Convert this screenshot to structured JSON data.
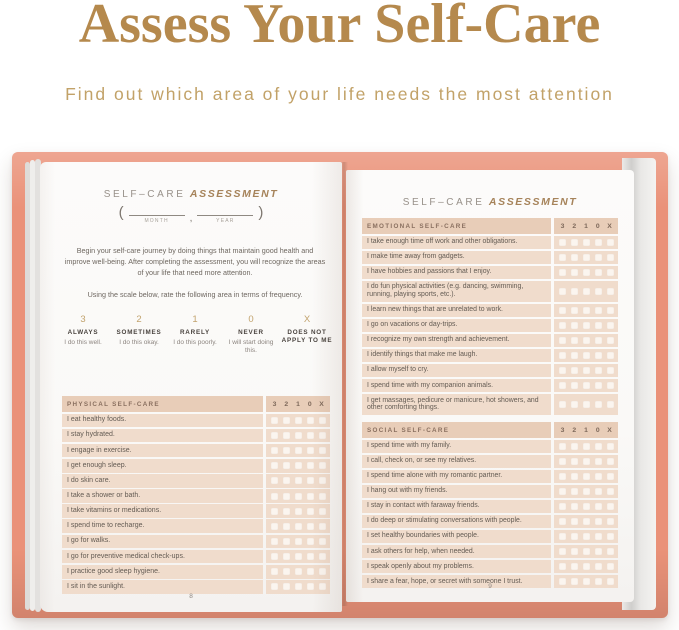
{
  "hero": {
    "title": "Assess Your Self-Care",
    "subtitle": "Find out which area of your life needs the most attention"
  },
  "rating_scale": [
    "3",
    "2",
    "1",
    "0",
    "X"
  ],
  "left_page": {
    "header": {
      "first": "SELF–CARE",
      "second": "ASSESSMENT"
    },
    "date_fields": {
      "open_paren": "(",
      "comma": ",",
      "close_paren": ")",
      "month_label": "MONTH",
      "year_label": "YEAR"
    },
    "intro": "Begin your self-care journey by doing things that maintain good health and improve well-being. After completing the assessment, you will recognize the areas of your life that need more attention.",
    "scale_instruction": "Using the scale below, rate the following area in terms of frequency.",
    "scale_legend": [
      {
        "value": "3",
        "label": "ALWAYS",
        "desc": "I do this well."
      },
      {
        "value": "2",
        "label": "SOMETIMES",
        "desc": "I do this okay."
      },
      {
        "value": "1",
        "label": "RARELY",
        "desc": "I do this poorly."
      },
      {
        "value": "0",
        "label": "NEVER",
        "desc": "I will start doing this."
      },
      {
        "value": "X",
        "label": "DOES NOT APPLY TO ME",
        "desc": ""
      }
    ],
    "physical_table": {
      "title": "PHYSICAL SELF-CARE",
      "items": [
        "I eat healthy foods.",
        "I stay hydrated.",
        "I engage in exercise.",
        "I get enough sleep.",
        "I do skin care.",
        "I take a shower or bath.",
        "I take vitamins or medications.",
        "I spend time to recharge.",
        "I go for walks.",
        "I go for preventive medical check-ups.",
        "I practice good sleep hygiene.",
        "I sit in the sunlight."
      ]
    },
    "page_number": "8"
  },
  "right_page": {
    "header": {
      "first": "SELF–CARE",
      "second": "ASSESSMENT"
    },
    "emotional_table": {
      "title": "EMOTIONAL SELF-CARE",
      "items": [
        "I take enough time off work and other obligations.",
        "I make time away from gadgets.",
        "I have hobbies and passions that I enjoy.",
        "I do fun physical activities (e.g. dancing, swimming, running, playing sports, etc.).",
        "I learn new things that are unrelated to work.",
        "I go on vacations or day-trips.",
        "I recognize my own strength and achievement.",
        "I identify things that make me laugh.",
        "I allow myself to cry.",
        "I spend time with my companion animals.",
        "I get massages, pedicure or manicure, hot showers, and other comforting things."
      ]
    },
    "social_table": {
      "title": "SOCIAL SELF-CARE",
      "items": [
        "I spend time with my family.",
        "I call, check on, or see my relatives.",
        "I spend time alone with my romantic partner.",
        "I hang out with my friends.",
        "I stay in contact with faraway friends.",
        "I do deep or stimulating conversations with people.",
        "I set healthy boundaries with people.",
        "I ask others for help, when needed.",
        "I speak openly about my problems.",
        "I share a fear, hope, or secret with someone I trust."
      ]
    },
    "page_number": "9"
  },
  "colors": {
    "gold-title": "#b5894d",
    "gold-sub": "#c2a268",
    "coral": "#ea9279",
    "band-row": "#f0dccc",
    "band-head": "#e8cdb8",
    "band-title-text": "#8a7060",
    "row-text": "#635b53",
    "checkbox": "#fbf5ef",
    "page": "#faf9f7"
  }
}
